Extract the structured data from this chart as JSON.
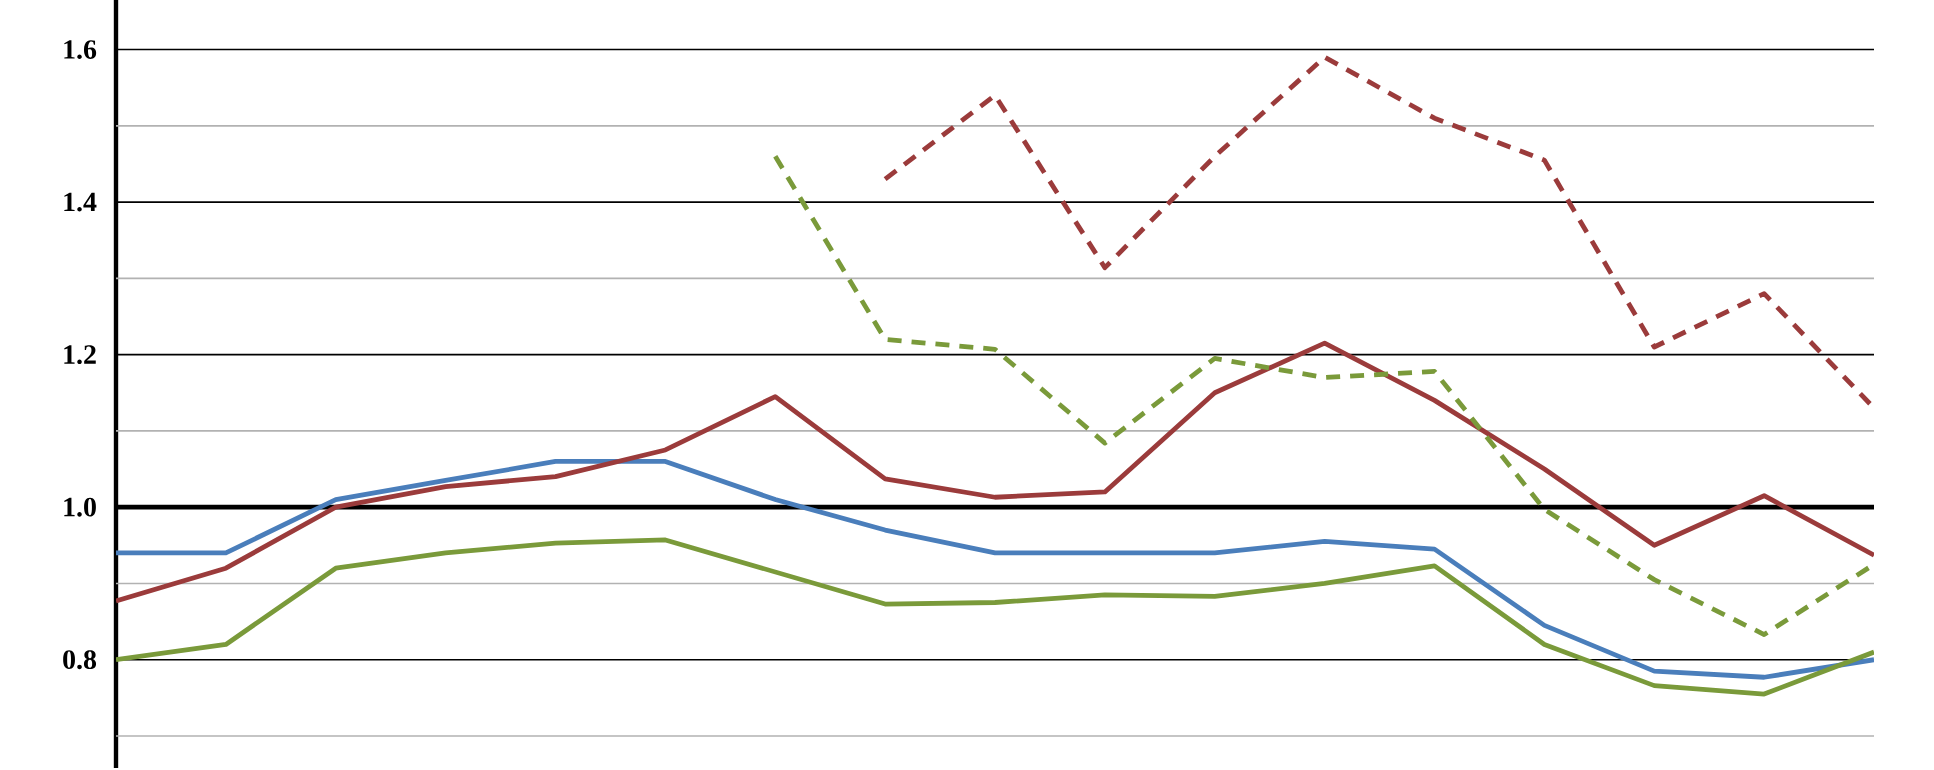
{
  "chart_data": {
    "type": "line",
    "categories": [
      null,
      null,
      null,
      null,
      null,
      null,
      null,
      null,
      null,
      null,
      null,
      null,
      null,
      null,
      null,
      null,
      null
    ],
    "ylim": [
      0.658,
      1.665
    ],
    "yticks": [
      {
        "value": 0.7,
        "label": null
      },
      {
        "value": 0.8,
        "label": "0.8"
      },
      {
        "value": 0.9,
        "label": null
      },
      {
        "value": 1.0,
        "label": "1.0"
      },
      {
        "value": 1.1,
        "label": null
      },
      {
        "value": 1.2,
        "label": "1.2"
      },
      {
        "value": 1.3,
        "label": null
      },
      1.4,
      {
        "value": 1.5,
        "label": null
      },
      1.6
    ],
    "grid": "y",
    "tick_labels": "y",
    "marker": "none",
    "ref_lines": [
      {
        "axis": "y",
        "value": 1.0,
        "color": "#000000"
      }
    ],
    "series": [
      {
        "color": "#4a7ebb",
        "line_style": "solid",
        "values": [
          0.94,
          0.94,
          1.01,
          1.035,
          1.06,
          1.06,
          1.01,
          0.97,
          0.94,
          0.94,
          0.94,
          0.955,
          0.945,
          0.845,
          0.785,
          0.777,
          0.8
        ]
      },
      {
        "color": "#9b3b3b",
        "line_style": "solid",
        "values": [
          0.877,
          0.92,
          1.0,
          1.027,
          1.04,
          1.075,
          1.145,
          1.037,
          1.013,
          1.02,
          1.15,
          1.215,
          1.14,
          1.05,
          0.95,
          1.015,
          0.937
        ]
      },
      {
        "color": "#7a9a3a",
        "line_style": "solid",
        "values": [
          0.8,
          0.82,
          0.92,
          0.94,
          0.953,
          0.957,
          0.915,
          0.873,
          0.875,
          0.885,
          0.883,
          0.9,
          0.923,
          0.82,
          0.766,
          0.755,
          0.81
        ]
      },
      {
        "color": "#9b3b3b",
        "line_style": "dashed",
        "values": [
          null,
          null,
          null,
          null,
          null,
          null,
          null,
          1.43,
          1.54,
          1.314,
          1.46,
          1.59,
          1.51,
          1.455,
          1.21,
          1.28,
          1.13
        ]
      },
      {
        "color": "#7a9a3a",
        "line_style": "dashed",
        "values": [
          null,
          null,
          null,
          null,
          null,
          null,
          1.46,
          1.22,
          1.207,
          1.084,
          1.195,
          1.17,
          1.178,
          0.997,
          0.905,
          0.833,
          0.925
        ]
      }
    ]
  }
}
